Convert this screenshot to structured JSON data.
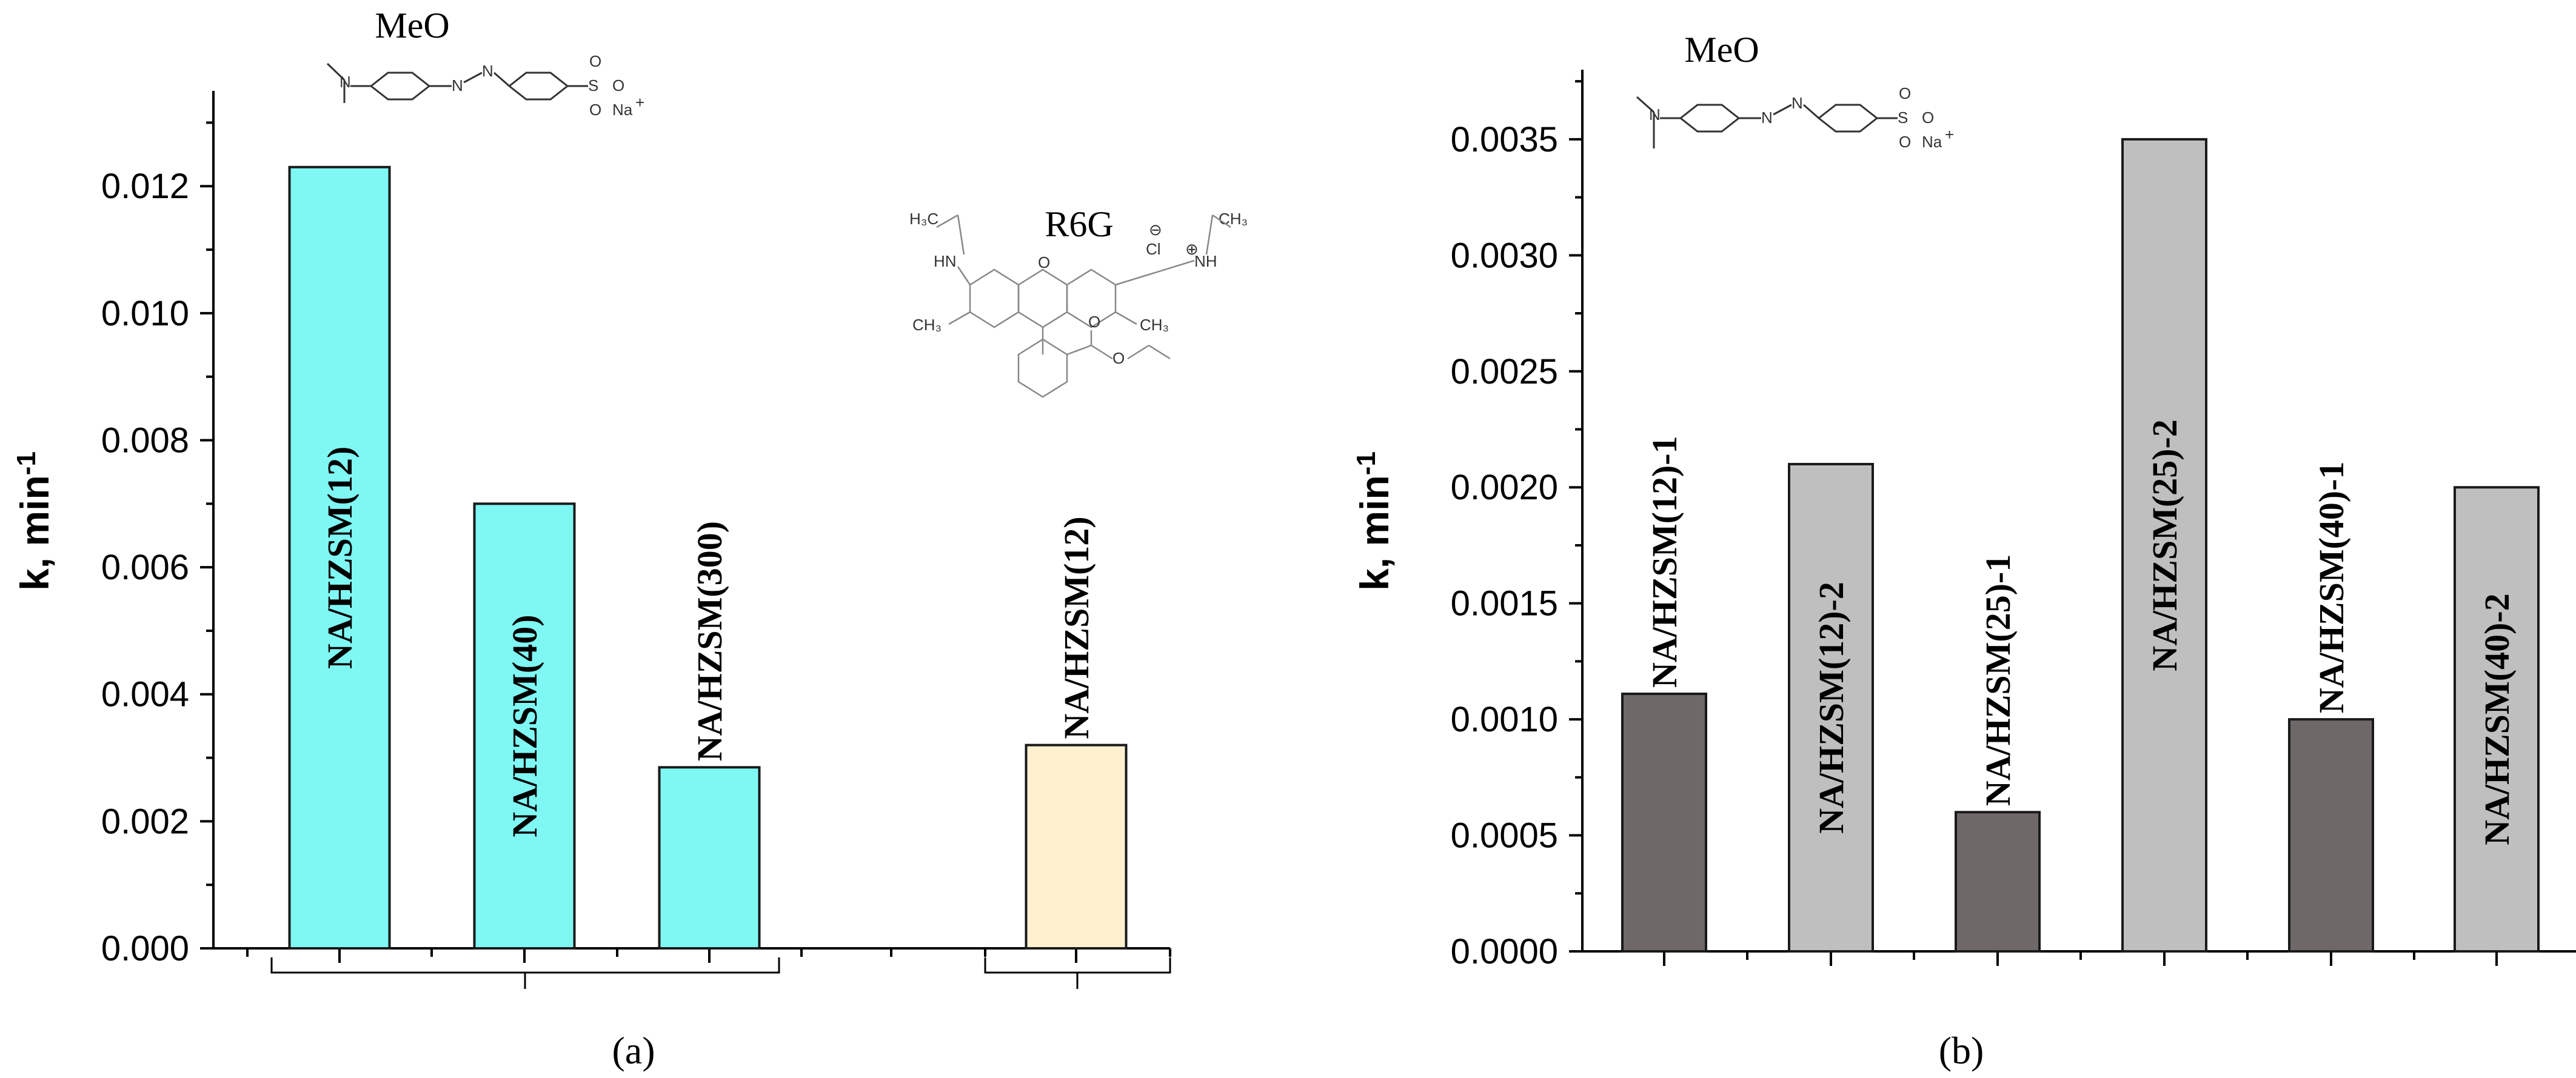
{
  "chart_data": [
    {
      "type": "bar",
      "panel_label": "(a)",
      "ylabel": "k, min-1",
      "ylabel_main": "k, min",
      "ylabel_sup": "-1",
      "ylim": [
        0,
        0.0135
      ],
      "yticks": [
        "0.000",
        "0.002",
        "0.004",
        "0.006",
        "0.008",
        "0.010",
        "0.012"
      ],
      "grid": false,
      "bars": [
        {
          "label": "NA/HZSM(12)",
          "value": 0.0123,
          "color": "#7ff8f4",
          "group": "MeO"
        },
        {
          "label": "NA/HZSM(40)",
          "value": 0.007,
          "color": "#7ff8f4",
          "group": "MeO"
        },
        {
          "label": "NA/HZSM(300)",
          "value": 0.00285,
          "color": "#7ff8f4",
          "group": "MeO"
        },
        {
          "label": "NA/HZSM(12)",
          "value": 0.0032,
          "color": "#fff1d0",
          "group": "R6G"
        }
      ],
      "annotations": [
        "MeO",
        "R6G"
      ]
    },
    {
      "type": "bar",
      "panel_label": "(b)",
      "ylabel": "k, min-1",
      "ylabel_main": "k, min",
      "ylabel_sup": "-1",
      "ylim": [
        0,
        0.0038
      ],
      "yticks": [
        "0.0000",
        "0.0005",
        "0.0010",
        "0.0015",
        "0.0020",
        "0.0025",
        "0.0030",
        "0.0035"
      ],
      "grid": false,
      "bars": [
        {
          "label": "NA/HZSM(12)-1",
          "value": 0.00111,
          "color": "#6e6868"
        },
        {
          "label": "NA/HZSM(12)-2",
          "value": 0.0021,
          "color": "#bfbfbf"
        },
        {
          "label": "NA/HZSM(25)-1",
          "value": 0.0006,
          "color": "#6e6868"
        },
        {
          "label": "NA/HZSM(25)-2",
          "value": 0.0035,
          "color": "#bfbfbf"
        },
        {
          "label": "NA/HZSM(40)-1",
          "value": 0.001,
          "color": "#6e6868"
        },
        {
          "label": "NA/HZSM(40)-2",
          "value": 0.002,
          "color": "#bfbfbf"
        }
      ],
      "annotations": [
        "MeO"
      ]
    }
  ],
  "molecules": {
    "meo_title": "MeO",
    "r6g_title": "R6G",
    "meo_atoms": {
      "n1": "N",
      "n2": "N",
      "s": "S",
      "o_minus": "O",
      "na_plus": "Na",
      "plus_sign": "+",
      "o_top": "O",
      "o_bottom": "O"
    },
    "r6g_atoms": {
      "h3c": "H₃C",
      "ch3": "CH₃",
      "hn": "HN",
      "nh": "NH",
      "cl": "Cl",
      "plus": "⊕",
      "minus": "⊖",
      "o_ring": "O",
      "o_ester1": "O",
      "o_ester2": "O",
      "ch3_left": "CH₃",
      "ch3_right": "CH₃"
    }
  }
}
